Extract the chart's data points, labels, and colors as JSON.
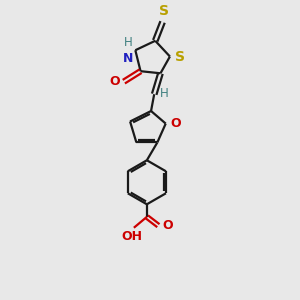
{
  "bg_color": "#e8e8e8",
  "bond_color": "#1a1a1a",
  "S_color": "#b8a000",
  "N_color": "#2020c0",
  "O_color": "#cc0000",
  "H_color": "#408080",
  "font_size": 9,
  "fig_size": [
    3.0,
    3.0
  ],
  "dpi": 100,
  "xlim": [
    0,
    10
  ],
  "ylim": [
    0,
    14
  ]
}
